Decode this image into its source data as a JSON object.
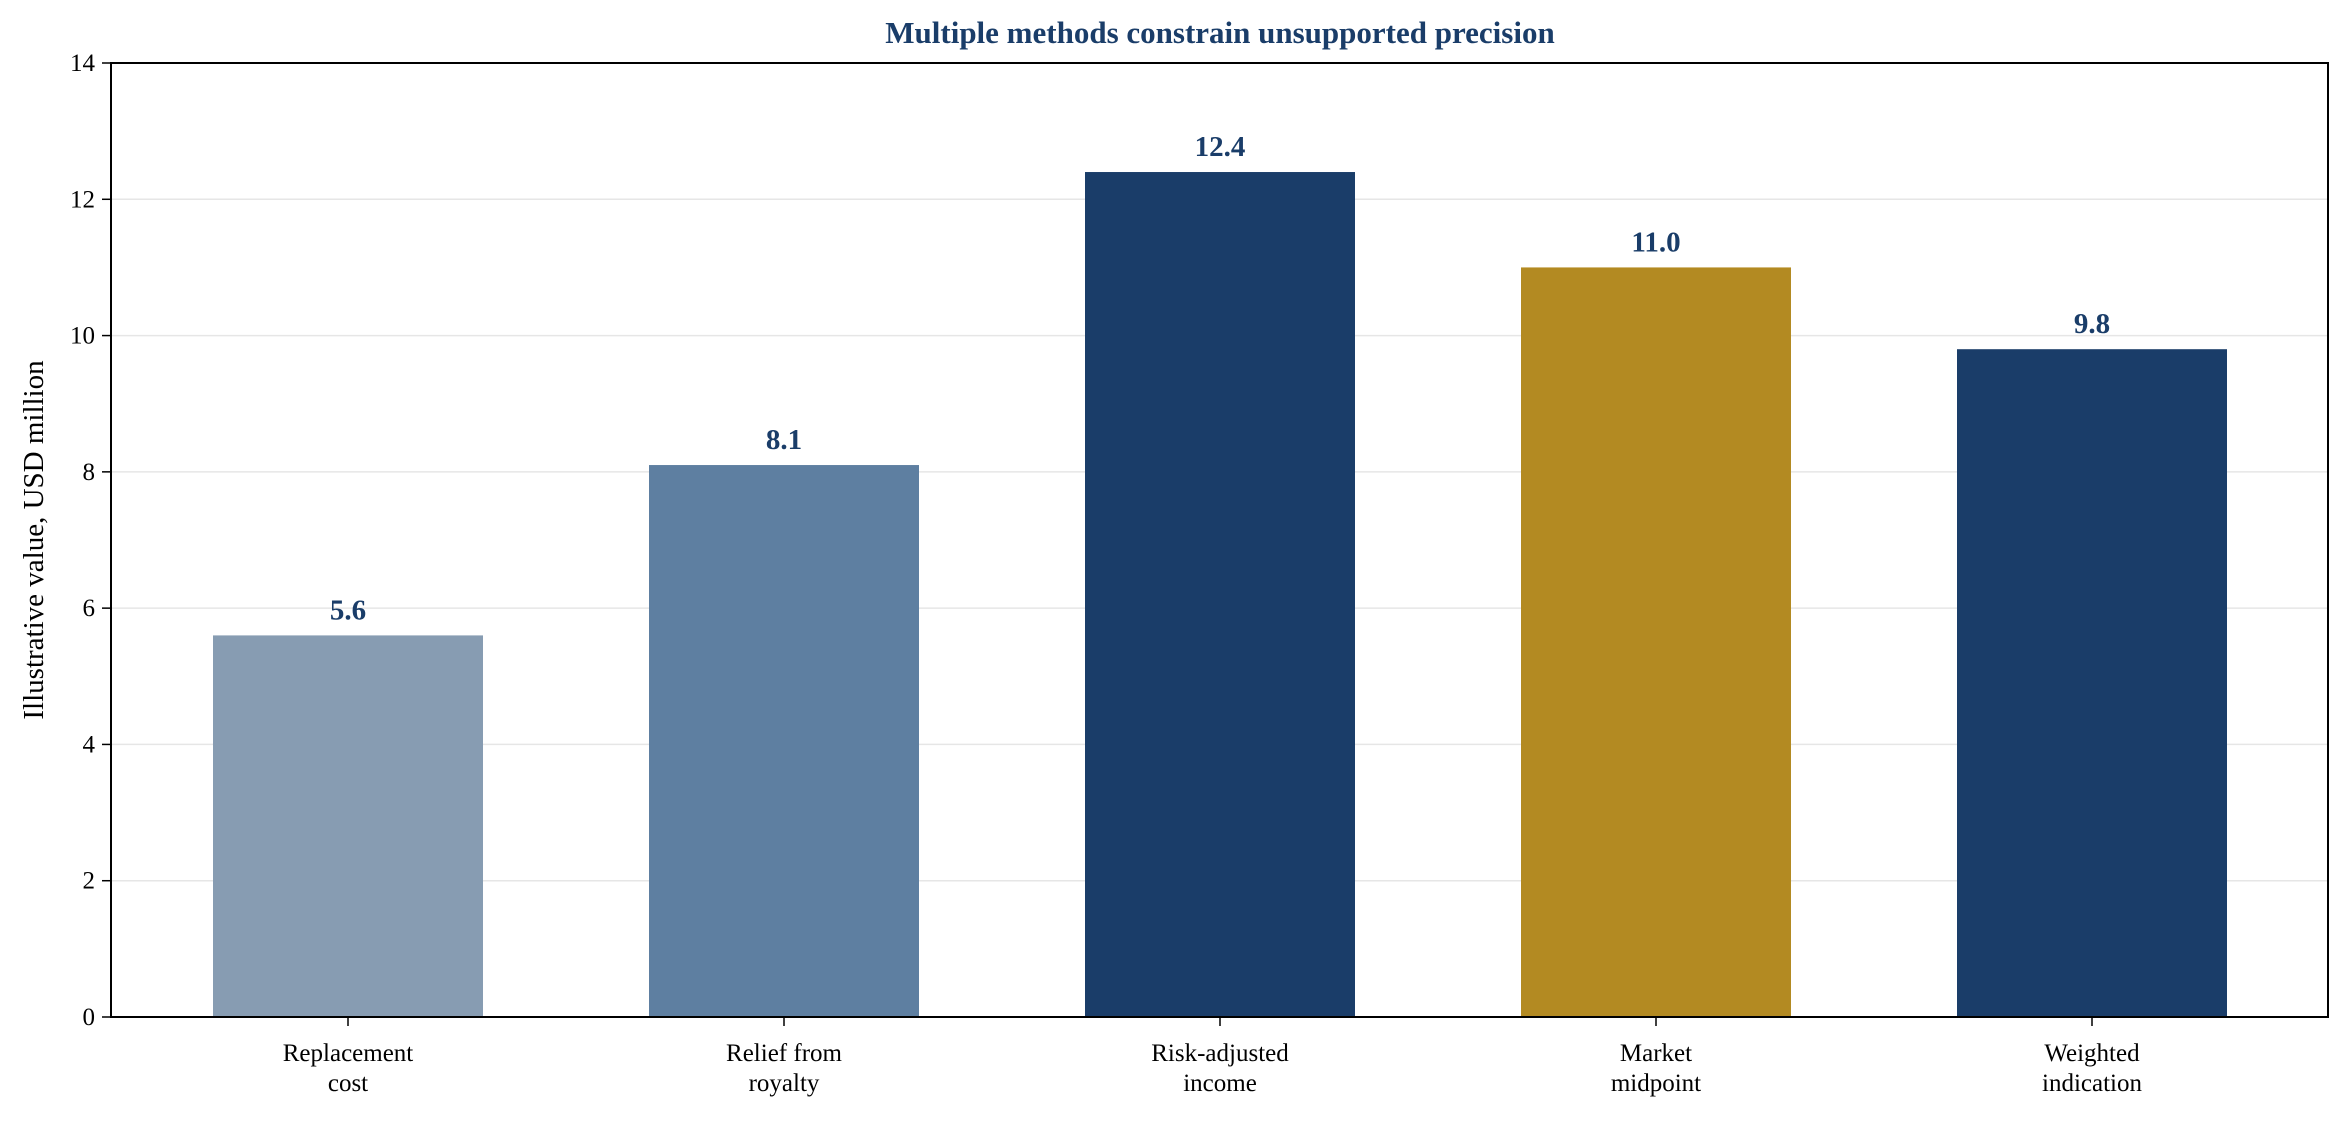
{
  "chart_data": {
    "type": "bar",
    "title": "Multiple methods constrain unsupported precision",
    "xlabel": "",
    "ylabel": "Illustrative value, USD million",
    "ylim": [
      0,
      14
    ],
    "yticks": [
      "0",
      "2",
      "4",
      "6",
      "8",
      "10",
      "12",
      "14"
    ],
    "grid": "horizontal",
    "categories": [
      [
        "Replacement",
        "cost"
      ],
      [
        "Relief from",
        "royalty"
      ],
      [
        "Risk-adjusted",
        "income"
      ],
      [
        "Market",
        "midpoint"
      ],
      [
        "Weighted",
        "indication"
      ]
    ],
    "values": [
      5.6,
      8.1,
      12.4,
      11.0,
      9.8
    ],
    "value_labels": [
      "5.6",
      "8.1",
      "12.4",
      "11.0",
      "9.8"
    ],
    "colors": [
      "#879cb2",
      "#5e7fa1",
      "#1a3d69",
      "#b38a22",
      "#1a3d69"
    ],
    "label_color": "#1a3d69",
    "grid_color": "#e6e6e6"
  }
}
